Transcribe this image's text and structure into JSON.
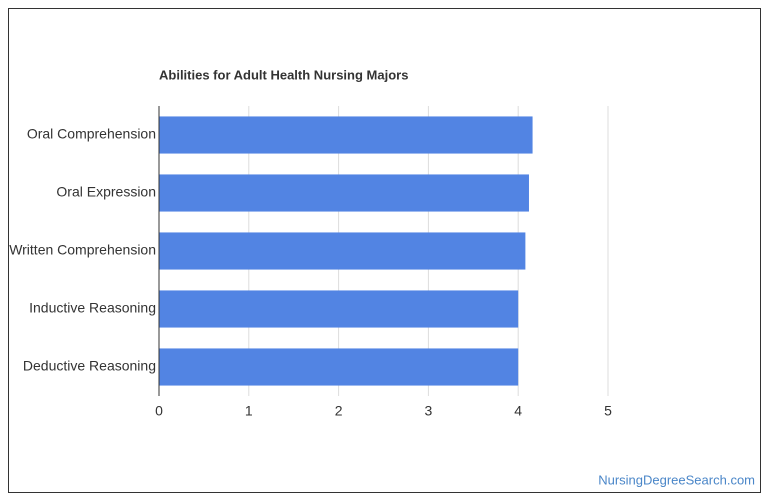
{
  "chart_data": {
    "type": "bar",
    "orientation": "horizontal",
    "title": "Abilities for Adult Health Nursing Majors",
    "categories": [
      "Oral Comprehension",
      "Oral Expression",
      "Written Comprehension",
      "Inductive Reasoning",
      "Deductive Reasoning"
    ],
    "values": [
      4.16,
      4.12,
      4.08,
      4.0,
      4.0
    ],
    "color": "#5284e3",
    "xlim": [
      0,
      5
    ],
    "xticks": [
      0,
      1,
      2,
      3,
      4,
      5
    ],
    "grid": true
  },
  "watermark": "NursingDegreeSearch.com"
}
